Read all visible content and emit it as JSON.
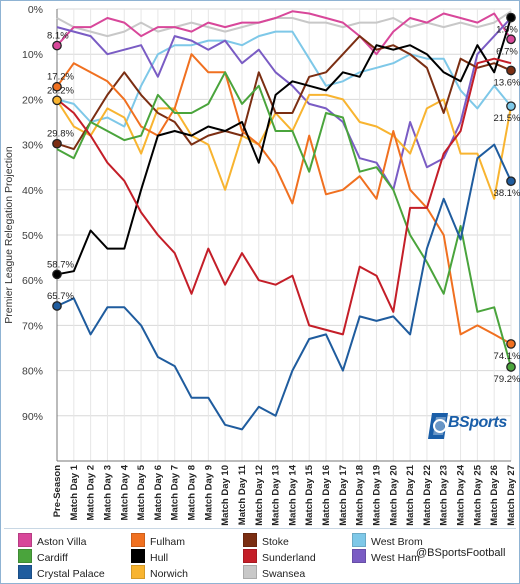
{
  "chart_data": {
    "type": "line",
    "title": "",
    "ylabel": "Premier League Relegation Projection",
    "xlabel": "",
    "ylim": [
      0,
      100
    ],
    "y_inverted": true,
    "y_ticks": [
      "0%",
      "10%",
      "20%",
      "30%",
      "40%",
      "50%",
      "60%",
      "70%",
      "80%",
      "90%"
    ],
    "categories": [
      "Pre-Season",
      "Match Day 1",
      "Match Day 2",
      "Match Day 3",
      "Match Day 4",
      "Match Day 5",
      "Match Day 6",
      "Match Day 7",
      "Match Day 8",
      "Match Day 9",
      "Match Day 10",
      "Match Day 11",
      "Match Day 12",
      "Match Day 13",
      "Match Day 14",
      "Match Day 15",
      "Match Day 16",
      "Match Day 17",
      "Match Day 18",
      "Match Day 19",
      "Match Day 20",
      "Match Day 21",
      "Match Day 22",
      "Match Day 23",
      "Match Day 24",
      "Match Day 25",
      "Match Day 26",
      "Match Day 27"
    ],
    "grid": true,
    "legend_position": "bottom",
    "series": [
      {
        "name": "Swansea",
        "color": "#c8c8c8",
        "values": [
          2,
          4,
          5,
          6,
          5,
          3,
          5,
          4,
          3,
          4,
          5,
          4,
          3,
          2,
          2,
          3,
          3,
          4,
          3,
          3,
          2,
          4,
          3,
          4,
          3,
          4,
          3,
          0.5
        ],
        "start_label": "",
        "end_label": ""
      },
      {
        "name": "West Brom",
        "color": "#7ec8e8",
        "values": [
          20,
          21,
          25,
          24,
          26,
          17,
          10,
          8,
          8,
          7,
          7,
          8,
          6,
          5,
          5,
          11,
          17,
          16,
          14,
          13,
          12,
          10,
          11,
          11,
          18,
          22,
          17,
          21.5
        ],
        "start_label": "",
        "end_label": "21.5%"
      },
      {
        "name": "Aston Villa",
        "color": "#d8479a",
        "values": [
          8.1,
          4,
          4,
          2,
          3,
          6,
          4,
          4,
          5,
          3,
          4,
          3,
          3,
          2,
          0.5,
          1,
          2,
          3,
          6,
          10,
          5,
          2,
          3,
          1,
          2,
          3,
          1,
          6.7
        ],
        "start_label": "8.1%",
        "end_label": "6.7%"
      },
      {
        "name": "West Ham",
        "color": "#7a5cc4",
        "values": [
          4,
          5,
          6,
          10,
          9,
          8,
          15,
          6,
          7,
          9,
          7,
          12,
          9,
          14,
          17,
          21,
          22,
          25,
          33,
          34,
          40,
          25,
          35,
          33,
          25,
          10,
          6,
          2
        ],
        "start_label": "",
        "end_label": ""
      },
      {
        "name": "Norwich",
        "color": "#f8b430",
        "values": [
          20.2,
          26,
          28,
          22,
          24,
          32,
          22,
          22,
          28,
          30,
          40,
          28,
          30,
          23,
          27,
          19,
          19,
          20,
          25,
          26,
          28,
          32,
          22,
          20,
          32,
          32,
          42,
          21.5
        ],
        "start_label": "20.2%",
        "end_label": ""
      },
      {
        "name": "Stoke",
        "color": "#7b2e12",
        "values": [
          29.8,
          31,
          25,
          19,
          14,
          19,
          23,
          25,
          30,
          28,
          27,
          28,
          14,
          23,
          23,
          15,
          14,
          10,
          6,
          9,
          8,
          10,
          13,
          23,
          11,
          13,
          12,
          13.6
        ],
        "start_label": "29.8%",
        "end_label": "13.6%"
      },
      {
        "name": "Fulham",
        "color": "#f07020",
        "values": [
          17.2,
          12,
          14,
          16,
          20,
          26,
          28,
          22,
          10,
          14,
          14,
          27,
          30,
          35,
          43,
          28,
          41,
          40,
          37,
          42,
          27,
          40,
          44,
          50,
          72,
          70,
          72,
          74.1
        ],
        "start_label": "17.2%",
        "end_label": "74.1%"
      },
      {
        "name": "Hull",
        "color": "#000000",
        "values": [
          58.7,
          58,
          49,
          53,
          53,
          40,
          28,
          27,
          28,
          26,
          27,
          25,
          34,
          19,
          16,
          17,
          18,
          14,
          15,
          8,
          9,
          8,
          10,
          14,
          16,
          8,
          14,
          1.9
        ],
        "start_label": "58.7%",
        "end_label": "1.9%"
      },
      {
        "name": "Cardiff",
        "color": "#4aa43c",
        "values": [
          31,
          33,
          25,
          27,
          29,
          28,
          19,
          23,
          23,
          21,
          14,
          21,
          17,
          27,
          27,
          36,
          23,
          24,
          36,
          35,
          40,
          50,
          56,
          63,
          48,
          67,
          66,
          79.2
        ],
        "start_label": "",
        "end_label": "79.2%"
      },
      {
        "name": "Sunderland",
        "color": "#c41e28",
        "values": [
          20,
          23,
          28,
          34,
          38,
          45,
          50,
          54,
          63,
          53,
          61,
          54,
          60,
          61,
          59,
          70,
          71,
          72,
          57,
          59,
          67,
          44,
          44,
          32,
          27,
          12,
          11,
          12
        ],
        "start_label": "",
        "end_label": ""
      },
      {
        "name": "Crystal Palace",
        "color": "#1f5c9e",
        "values": [
          65.7,
          64,
          72,
          66,
          66,
          70,
          77,
          79,
          86,
          86,
          92,
          93,
          88,
          90,
          80,
          73,
          72,
          80,
          68,
          69,
          68,
          72,
          53,
          42,
          51,
          33,
          30,
          38.1
        ],
        "start_label": "65.7%",
        "end_label": "38.1%"
      }
    ]
  },
  "legend": {
    "items": [
      {
        "name": "Aston Villa",
        "color": "#d8479a"
      },
      {
        "name": "Fulham",
        "color": "#f07020"
      },
      {
        "name": "Stoke",
        "color": "#7b2e12"
      },
      {
        "name": "West Brom",
        "color": "#7ec8e8"
      },
      {
        "name": "Cardiff",
        "color": "#4aa43c"
      },
      {
        "name": "Hull",
        "color": "#000000"
      },
      {
        "name": "Sunderland",
        "color": "#c41e28"
      },
      {
        "name": "West Ham",
        "color": "#7a5cc4"
      },
      {
        "name": "Crystal Palace",
        "color": "#1f5c9e"
      },
      {
        "name": "Norwich",
        "color": "#f8b430"
      },
      {
        "name": "Swansea",
        "color": "#c8c8c8"
      }
    ]
  },
  "branding": {
    "handle": "@BSportsFootball",
    "logo_text": "BSports",
    "logo_color": "#1a5ea8"
  }
}
